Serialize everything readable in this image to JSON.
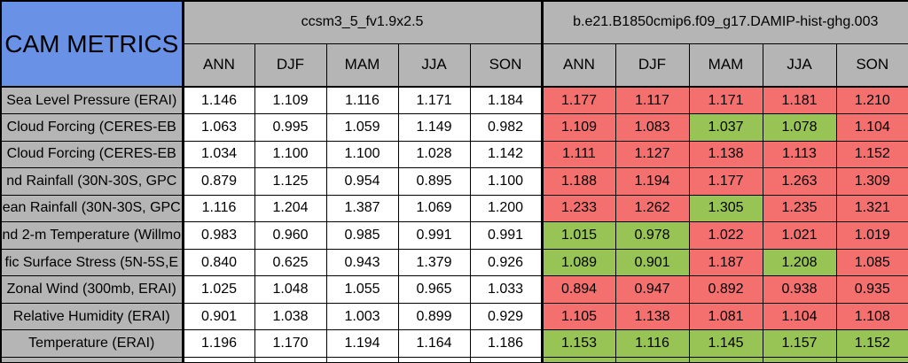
{
  "colors": {
    "corner_bg": "#6992E6",
    "header_bg": "#B5B5B5",
    "better": "#98C455",
    "worse": "#F4706E",
    "border": "#000000",
    "cell_bg": "#FFFFFF"
  },
  "chart_data": {
    "type": "table",
    "corner_label": "CAM METRICS",
    "model_headers": [
      "ccsm3_5_fv1.9x2.5",
      "b.e21.B1850cmip6.f09_g17.DAMIP-hist-ghg.003"
    ],
    "season_columns": [
      "ANN",
      "DJF",
      "MAM",
      "JJA",
      "SON"
    ],
    "rows": [
      {
        "label": "Sea Level Pressure (ERAI)",
        "model1": [
          "1.146",
          "1.109",
          "1.116",
          "1.171",
          "1.184"
        ],
        "model2": [
          "1.177",
          "1.117",
          "1.171",
          "1.181",
          "1.210"
        ],
        "model2_flags": [
          "worse",
          "worse",
          "worse",
          "worse",
          "worse"
        ]
      },
      {
        "label": "Cloud Forcing (CERES-EB",
        "model1": [
          "1.063",
          "0.995",
          "1.059",
          "1.149",
          "0.982"
        ],
        "model2": [
          "1.109",
          "1.083",
          "1.037",
          "1.078",
          "1.104"
        ],
        "model2_flags": [
          "worse",
          "worse",
          "better",
          "better",
          "worse"
        ]
      },
      {
        "label": "Cloud Forcing (CERES-EB",
        "model1": [
          "1.034",
          "1.100",
          "1.100",
          "1.028",
          "1.142"
        ],
        "model2": [
          "1.111",
          "1.127",
          "1.138",
          "1.113",
          "1.152"
        ],
        "model2_flags": [
          "worse",
          "worse",
          "worse",
          "worse",
          "worse"
        ]
      },
      {
        "label": "nd Rainfall (30N-30S, GPC",
        "model1": [
          "0.879",
          "1.125",
          "0.954",
          "0.895",
          "1.100"
        ],
        "model2": [
          "1.188",
          "1.194",
          "1.177",
          "1.263",
          "1.309"
        ],
        "model2_flags": [
          "worse",
          "worse",
          "worse",
          "worse",
          "worse"
        ]
      },
      {
        "label": "ean Rainfall (30N-30S, GPC",
        "model1": [
          "1.116",
          "1.204",
          "1.387",
          "1.069",
          "1.200"
        ],
        "model2": [
          "1.233",
          "1.262",
          "1.305",
          "1.235",
          "1.321"
        ],
        "model2_flags": [
          "worse",
          "worse",
          "better",
          "worse",
          "worse"
        ]
      },
      {
        "label": "nd 2-m Temperature (Willmo",
        "model1": [
          "0.983",
          "0.960",
          "0.985",
          "0.991",
          "0.991"
        ],
        "model2": [
          "1.015",
          "0.978",
          "1.022",
          "1.021",
          "1.019"
        ],
        "model2_flags": [
          "better",
          "better",
          "worse",
          "worse",
          "worse"
        ]
      },
      {
        "label": "fic Surface Stress (5N-5S,E",
        "model1": [
          "0.840",
          "0.625",
          "0.943",
          "1.379",
          "0.926"
        ],
        "model2": [
          "1.089",
          "0.901",
          "1.187",
          "1.208",
          "1.085"
        ],
        "model2_flags": [
          "better",
          "better",
          "worse",
          "better",
          "worse"
        ]
      },
      {
        "label": "Zonal Wind (300mb, ERAI)",
        "model1": [
          "1.025",
          "1.048",
          "1.055",
          "0.965",
          "1.033"
        ],
        "model2": [
          "0.894",
          "0.947",
          "0.892",
          "0.938",
          "0.935"
        ],
        "model2_flags": [
          "worse",
          "worse",
          "worse",
          "worse",
          "worse"
        ]
      },
      {
        "label": "Relative Humidity (ERAI)",
        "model1": [
          "0.901",
          "1.038",
          "1.003",
          "0.899",
          "0.929"
        ],
        "model2": [
          "1.105",
          "1.138",
          "1.081",
          "1.104",
          "1.108"
        ],
        "model2_flags": [
          "worse",
          "worse",
          "worse",
          "worse",
          "worse"
        ]
      },
      {
        "label": "Temperature (ERAI)",
        "model1": [
          "1.196",
          "1.170",
          "1.194",
          "1.164",
          "1.186"
        ],
        "model2": [
          "1.153",
          "1.116",
          "1.145",
          "1.157",
          "1.152"
        ],
        "model2_flags": [
          "better",
          "better",
          "better",
          "better",
          "better"
        ]
      }
    ],
    "clipped_bottom_row": {
      "model2_flag": "better"
    }
  }
}
